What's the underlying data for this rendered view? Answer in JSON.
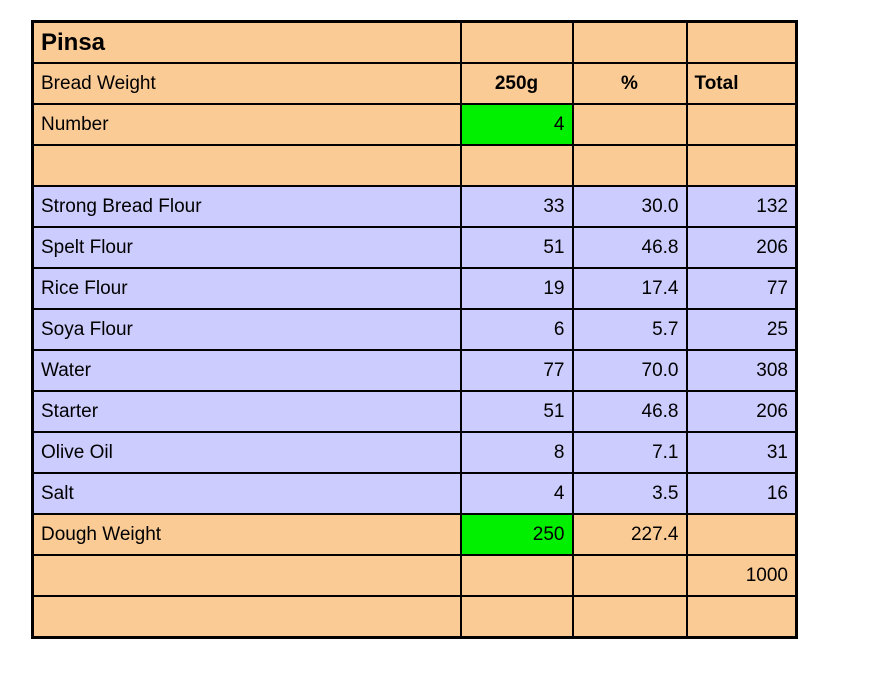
{
  "colors": {
    "row_peach": "#FBCB96",
    "row_lavender": "#CCCCFE",
    "input_green": "#00F000",
    "grid_border": "#000000",
    "page_background": "#FFFFFF"
  },
  "table": {
    "title": "Pinsa",
    "header": {
      "label": "Bread Weight",
      "weight_col": "250g",
      "percent_col": "%",
      "total_col": "Total"
    },
    "number_row": {
      "label": "Number",
      "value": "4"
    },
    "ingredients": [
      {
        "name": "Strong Bread Flour",
        "grams": "33",
        "percent": "30.0",
        "total": "132"
      },
      {
        "name": "Spelt Flour",
        "grams": "51",
        "percent": "46.8",
        "total": "206"
      },
      {
        "name": "Rice Flour",
        "grams": "19",
        "percent": "17.4",
        "total": "77"
      },
      {
        "name": "Soya Flour",
        "grams": "6",
        "percent": "5.7",
        "total": "25"
      },
      {
        "name": "Water",
        "grams": "77",
        "percent": "70.0",
        "total": "308"
      },
      {
        "name": "Starter",
        "grams": "51",
        "percent": "46.8",
        "total": "206"
      },
      {
        "name": "Olive Oil",
        "grams": "8",
        "percent": "7.1",
        "total": "31"
      },
      {
        "name": "Salt",
        "grams": "4",
        "percent": "3.5",
        "total": "16"
      }
    ],
    "dough_row": {
      "label": "Dough Weight",
      "grams": "250",
      "percent": "227.4"
    },
    "grand_total": "1000"
  }
}
